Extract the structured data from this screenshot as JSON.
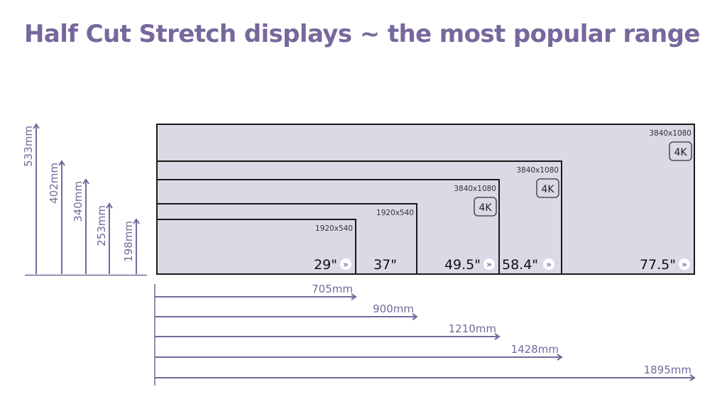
{
  "title": "Half Cut Stretch displays ~ the most popular range",
  "colors": {
    "accent": "#76689c",
    "panel_fill": "#dcd8e6",
    "outline": "#1a1a1a",
    "arrow": "#76689c"
  },
  "displays": [
    {
      "size": "29\"",
      "resolution": "1920x540",
      "badge": "",
      "more_icon": true,
      "width_mm": "705mm",
      "height_mm": "198mm"
    },
    {
      "size": "37\"",
      "resolution": "1920x540",
      "badge": "",
      "more_icon": false,
      "width_mm": "900mm",
      "height_mm": "253mm"
    },
    {
      "size": "49.5\"",
      "resolution": "3840x1080",
      "badge": "4K",
      "more_icon": true,
      "width_mm": "1210mm",
      "height_mm": "340mm"
    },
    {
      "size": "58.4\"",
      "resolution": "3840x1080",
      "badge": "4K",
      "more_icon": true,
      "width_mm": "1428mm",
      "height_mm": "402mm"
    },
    {
      "size": "77.5\"",
      "resolution": "3840x1080",
      "badge": "4K",
      "more_icon": true,
      "width_mm": "1895mm",
      "height_mm": "533mm"
    }
  ]
}
